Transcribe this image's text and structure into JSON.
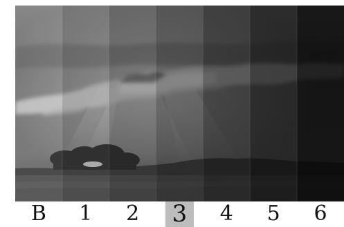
{
  "strip": {
    "labels": [
      "B",
      "1",
      "2",
      "3",
      "4",
      "5",
      "6"
    ],
    "selected_label": "3",
    "panel_shading_opacity": [
      0,
      0.13,
      0.27,
      0.4,
      0.54,
      0.67,
      0.82
    ]
  },
  "colors": {
    "background": "#ffffff",
    "label_text": "#111111",
    "selected_highlight": "#bdbdbd"
  }
}
